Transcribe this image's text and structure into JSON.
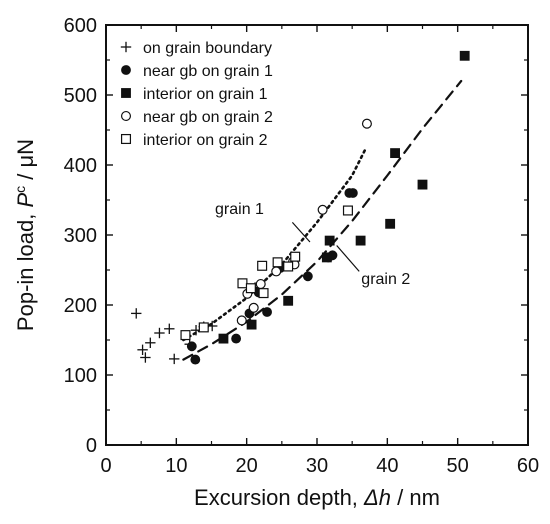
{
  "chart_data": {
    "type": "scatter",
    "xlabel_parts": [
      "Excursion depth, ",
      "Δh",
      " / nm"
    ],
    "ylabel_parts": [
      "Pop-in load, ",
      "P",
      "c",
      " / μN"
    ],
    "xlim": [
      0,
      60
    ],
    "ylim": [
      0,
      600
    ],
    "xticks": [
      0,
      10,
      20,
      30,
      40,
      50,
      60
    ],
    "yticks": [
      0,
      100,
      200,
      300,
      400,
      500,
      600
    ],
    "grid": false,
    "legend_position": "top-left",
    "series": [
      {
        "name": "on grain boundary",
        "marker": "plus",
        "points": [
          [
            4.3,
            188
          ],
          [
            5.2,
            136
          ],
          [
            5.6,
            125
          ],
          [
            6.3,
            146
          ],
          [
            7.6,
            160
          ],
          [
            9.0,
            166
          ],
          [
            9.7,
            123
          ],
          [
            11.9,
            144
          ],
          [
            12.8,
            164
          ],
          [
            13.9,
            169
          ],
          [
            15.1,
            170
          ],
          [
            21.2,
            225
          ]
        ]
      },
      {
        "name": "near gb on grain 1",
        "marker": "filled-circle",
        "points": [
          [
            12.2,
            141
          ],
          [
            12.7,
            122
          ],
          [
            18.5,
            152
          ],
          [
            20.4,
            188
          ],
          [
            21.7,
            218
          ],
          [
            22.9,
            190
          ],
          [
            24.8,
            253
          ],
          [
            28.7,
            241
          ],
          [
            31.6,
            268
          ],
          [
            32.2,
            271
          ],
          [
            34.6,
            360
          ],
          [
            35.1,
            360
          ]
        ]
      },
      {
        "name": "interior on grain 1",
        "marker": "filled-square",
        "points": [
          [
            16.7,
            152
          ],
          [
            20.7,
            172
          ],
          [
            25.9,
            206
          ],
          [
            31.4,
            268
          ],
          [
            31.8,
            292
          ],
          [
            36.2,
            292
          ],
          [
            40.4,
            316
          ],
          [
            41.1,
            417
          ],
          [
            45.0,
            372
          ],
          [
            51.0,
            556
          ]
        ]
      },
      {
        "name": "near gb on grain 2",
        "marker": "open-circle",
        "points": [
          [
            19.3,
            178
          ],
          [
            20.1,
            216
          ],
          [
            21.0,
            196
          ],
          [
            22.0,
            230
          ],
          [
            24.2,
            248
          ],
          [
            26.6,
            262
          ],
          [
            26.8,
            258
          ],
          [
            30.8,
            336
          ],
          [
            37.1,
            459
          ]
        ]
      },
      {
        "name": "interior on grain 2",
        "marker": "open-square",
        "points": [
          [
            11.3,
            157
          ],
          [
            13.9,
            168
          ],
          [
            19.4,
            231
          ],
          [
            20.6,
            224
          ],
          [
            22.2,
            256
          ],
          [
            22.4,
            217
          ],
          [
            24.4,
            261
          ],
          [
            25.9,
            255
          ],
          [
            26.9,
            269
          ],
          [
            34.4,
            335
          ]
        ]
      }
    ],
    "trend_lines": [
      {
        "label": "grain 1",
        "style": "dotted",
        "points": [
          [
            11,
            150
          ],
          [
            15,
            173
          ],
          [
            20,
            210
          ],
          [
            25,
            258
          ],
          [
            30,
            318
          ],
          [
            35,
            385
          ],
          [
            37,
            425
          ]
        ]
      },
      {
        "label": "grain 2",
        "style": "dashed",
        "points": [
          [
            11,
            122
          ],
          [
            15,
            144
          ],
          [
            20,
            176
          ],
          [
            25,
            215
          ],
          [
            30,
            262
          ],
          [
            35,
            320
          ],
          [
            40,
            385
          ],
          [
            45,
            452
          ],
          [
            50.5,
            520
          ]
        ]
      }
    ]
  }
}
